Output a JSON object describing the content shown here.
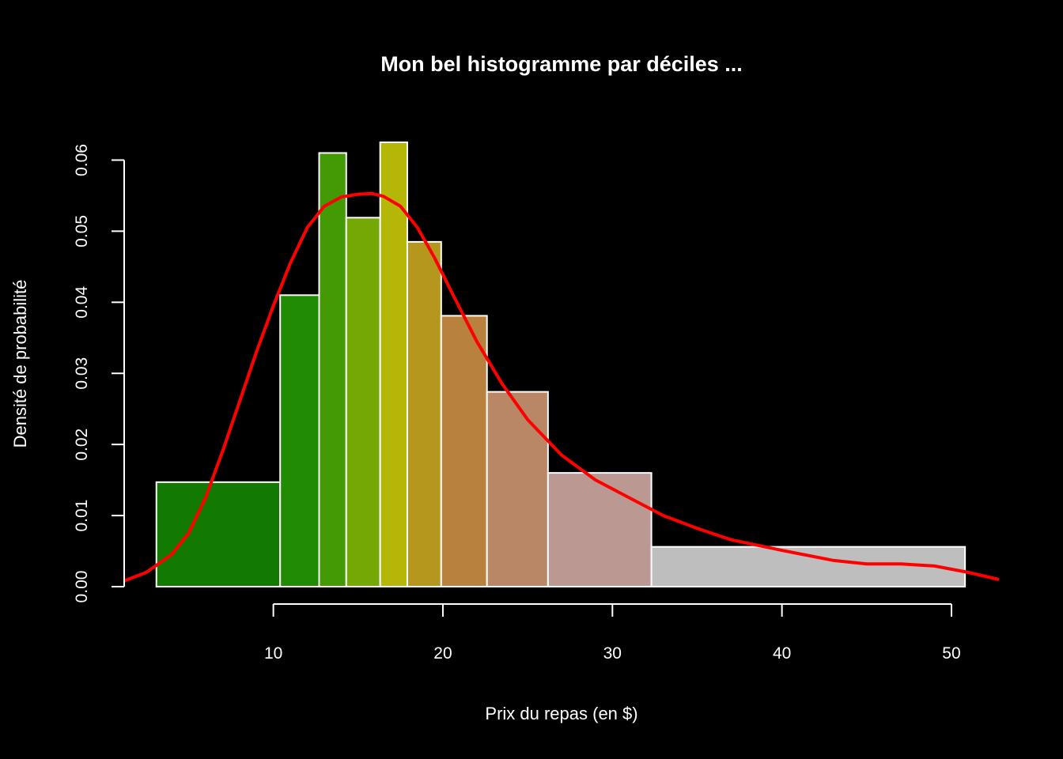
{
  "chart_data": {
    "type": "bar",
    "title": "Mon bel histogramme par déciles ...",
    "xlabel": "Prix du repas (en $)",
    "ylabel": "Densité de probabilité",
    "xlim": [
      1.2,
      52.8
    ],
    "ylim": [
      0,
      0.0625
    ],
    "x_ticks": [
      10,
      20,
      30,
      40,
      50
    ],
    "x_tick_labels": [
      "10",
      "20",
      "30",
      "40",
      "50"
    ],
    "y_ticks": [
      0.0,
      0.01,
      0.02,
      0.03,
      0.04,
      0.05,
      0.06
    ],
    "y_tick_labels": [
      "0.00",
      "0.01",
      "0.02",
      "0.03",
      "0.04",
      "0.05",
      "0.06"
    ],
    "grid": false,
    "legend": "none",
    "bins": [
      {
        "start": 3.1,
        "end": 10.4,
        "density": 0.0147,
        "color": "#127a02"
      },
      {
        "start": 10.4,
        "end": 12.7,
        "density": 0.041,
        "color": "#218b03"
      },
      {
        "start": 12.7,
        "end": 14.3,
        "density": 0.061,
        "color": "#449a05"
      },
      {
        "start": 14.3,
        "end": 16.3,
        "density": 0.0519,
        "color": "#73a805"
      },
      {
        "start": 16.3,
        "end": 17.9,
        "density": 0.0625,
        "color": "#b4b608"
      },
      {
        "start": 17.9,
        "end": 19.9,
        "density": 0.0485,
        "color": "#b5971d"
      },
      {
        "start": 19.9,
        "end": 22.6,
        "density": 0.0381,
        "color": "#b8813e"
      },
      {
        "start": 22.6,
        "end": 26.2,
        "density": 0.0274,
        "color": "#ba8766"
      },
      {
        "start": 26.2,
        "end": 32.3,
        "density": 0.016,
        "color": "#bb9891"
      },
      {
        "start": 32.3,
        "end": 50.8,
        "density": 0.0056,
        "color": "#bebebe"
      }
    ],
    "density_curve": {
      "name": "",
      "color": "#ff0000",
      "x": [
        1.2,
        2.5,
        4.0,
        5.0,
        6.0,
        7.0,
        8.0,
        9.0,
        10.0,
        11.0,
        12.0,
        13.0,
        14.0,
        15.0,
        15.8,
        16.5,
        17.5,
        18.5,
        19.5,
        20.5,
        22.0,
        23.5,
        25.0,
        27.0,
        29.0,
        31.0,
        33.0,
        35.0,
        37.0,
        40.0,
        43.0,
        45.0,
        47.0,
        49.0,
        51.0,
        52.8
      ],
      "y": [
        0.0008,
        0.002,
        0.0045,
        0.0075,
        0.0125,
        0.019,
        0.026,
        0.033,
        0.0395,
        0.0455,
        0.0505,
        0.0535,
        0.0548,
        0.0552,
        0.0553,
        0.0549,
        0.0535,
        0.0505,
        0.0463,
        0.0415,
        0.0345,
        0.0285,
        0.0235,
        0.0185,
        0.015,
        0.0125,
        0.01,
        0.0082,
        0.0066,
        0.0051,
        0.0037,
        0.0032,
        0.0032,
        0.0029,
        0.002,
        0.001
      ]
    }
  }
}
